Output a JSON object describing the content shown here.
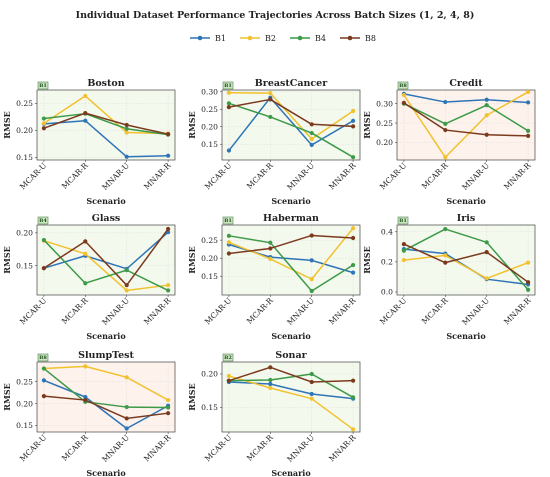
{
  "title": "Individual Dataset Performance Trajectories Across Batch Sizes (1, 2, 4, 8)",
  "legend": [
    {
      "name": "B1",
      "color": "#2e75b6"
    },
    {
      "name": "B2",
      "color": "#f2c12e"
    },
    {
      "name": "B4",
      "color": "#3c9a48"
    },
    {
      "name": "B8",
      "color": "#7b3a1e"
    }
  ],
  "chart_data": [
    {
      "type": "line",
      "title": "Boston",
      "best": "B1",
      "categories": [
        "MCAR-U",
        "MCAR-R",
        "MNAR-U",
        "MNAR-R"
      ],
      "xlabel": "Scenario",
      "ylabel": "RMSE",
      "ylim": [
        0.145,
        0.275
      ],
      "yticks": [
        0.15,
        0.2,
        0.25
      ],
      "ytick_labels": [
        "0.15",
        "0.20",
        "0.25"
      ],
      "background": "#f4f9ee",
      "badge_color": "#cfe6c4",
      "series": [
        {
          "name": "B1",
          "values": [
            0.212,
            0.218,
            0.151,
            0.153
          ]
        },
        {
          "name": "B2",
          "values": [
            0.213,
            0.264,
            0.196,
            0.194
          ]
        },
        {
          "name": "B4",
          "values": [
            0.222,
            0.231,
            0.203,
            0.192
          ]
        },
        {
          "name": "B8",
          "values": [
            0.204,
            0.232,
            0.21,
            0.193
          ]
        }
      ]
    },
    {
      "type": "line",
      "title": "BreastCancer",
      "best": "B1",
      "categories": [
        "MCAR-U",
        "MCAR-R",
        "MNAR-U",
        "MNAR-R"
      ],
      "xlabel": "Scenario",
      "ylabel": "RMSE",
      "ylim": [
        0.105,
        0.305
      ],
      "yticks": [
        0.15,
        0.2,
        0.25,
        0.3
      ],
      "ytick_labels": [
        "0.15",
        "0.20",
        "0.25",
        "0.30"
      ],
      "background": "#f4f9ee",
      "badge_color": "#cfe6c4",
      "series": [
        {
          "name": "B1",
          "values": [
            0.132,
            0.283,
            0.148,
            0.217
          ]
        },
        {
          "name": "B2",
          "values": [
            0.297,
            0.296,
            0.165,
            0.245
          ]
        },
        {
          "name": "B4",
          "values": [
            0.267,
            0.228,
            0.182,
            0.113
          ]
        },
        {
          "name": "B8",
          "values": [
            0.256,
            0.278,
            0.207,
            0.201
          ]
        }
      ]
    },
    {
      "type": "line",
      "title": "Credit",
      "best": "B8",
      "categories": [
        "MCAR-U",
        "MCAR-R",
        "MNAR-U",
        "MNAR-R"
      ],
      "xlabel": "Scenario",
      "ylabel": "RMSE",
      "ylim": [
        0.155,
        0.335
      ],
      "yticks": [
        0.2,
        0.25,
        0.3
      ],
      "ytick_labels": [
        "0.20",
        "0.25",
        "0.30"
      ],
      "background": "#fdf2ec",
      "badge_color": "#cfe6c4",
      "series": [
        {
          "name": "B1",
          "values": [
            0.325,
            0.304,
            0.31,
            0.303
          ]
        },
        {
          "name": "B2",
          "values": [
            0.322,
            0.162,
            0.27,
            0.33
          ]
        },
        {
          "name": "B4",
          "values": [
            0.3,
            0.248,
            0.296,
            0.23
          ]
        },
        {
          "name": "B8",
          "values": [
            0.302,
            0.232,
            0.22,
            0.217
          ]
        }
      ]
    },
    {
      "type": "line",
      "title": "Glass",
      "best": "B4",
      "categories": [
        "MCAR-U",
        "MCAR-R",
        "MNAR-U",
        "MNAR-R"
      ],
      "xlabel": "Scenario",
      "ylabel": "RMSE",
      "ylim": [
        0.105,
        0.212
      ],
      "yticks": [
        0.15,
        0.2
      ],
      "ytick_labels": [
        "0.15",
        "0.20"
      ],
      "background": "#f4f9ee",
      "badge_color": "#cfe6c4",
      "series": [
        {
          "name": "B1",
          "values": [
            0.146,
            0.165,
            0.145,
            0.201
          ]
        },
        {
          "name": "B2",
          "values": [
            0.188,
            0.168,
            0.112,
            0.12
          ]
        },
        {
          "name": "B4",
          "values": [
            0.189,
            0.123,
            0.143,
            0.112
          ]
        },
        {
          "name": "B8",
          "values": [
            0.146,
            0.187,
            0.12,
            0.206
          ]
        }
      ]
    },
    {
      "type": "line",
      "title": "Haberman",
      "best": "B1",
      "categories": [
        "MCAR-U",
        "MCAR-R",
        "MNAR-U",
        "MNAR-R"
      ],
      "xlabel": "Scenario",
      "ylabel": "RMSE",
      "ylim": [
        0.098,
        0.292
      ],
      "yticks": [
        0.15,
        0.2,
        0.25
      ],
      "ytick_labels": [
        "0.15",
        "0.20",
        "0.25"
      ],
      "background": "#f4f9ee",
      "badge_color": "#cfe6c4",
      "series": [
        {
          "name": "B1",
          "values": [
            0.238,
            0.203,
            0.194,
            0.16
          ]
        },
        {
          "name": "B2",
          "values": [
            0.244,
            0.198,
            0.142,
            0.283
          ]
        },
        {
          "name": "B4",
          "values": [
            0.262,
            0.243,
            0.109,
            0.181
          ]
        },
        {
          "name": "B8",
          "values": [
            0.213,
            0.227,
            0.263,
            0.256
          ]
        }
      ]
    },
    {
      "type": "line",
      "title": "Iris",
      "best": "B1",
      "categories": [
        "MCAR-U",
        "MCAR-R",
        "MNAR-U",
        "MNAR-R"
      ],
      "xlabel": "Scenario",
      "ylabel": "RMSE",
      "ylim": [
        -0.02,
        0.445
      ],
      "yticks": [
        0.0,
        0.2,
        0.4
      ],
      "ytick_labels": [
        "0.0",
        "0.2",
        "0.4"
      ],
      "background": "#f4f9ee",
      "badge_color": "#cfe6c4",
      "series": [
        {
          "name": "B1",
          "values": [
            0.285,
            0.255,
            0.085,
            0.05
          ]
        },
        {
          "name": "B2",
          "values": [
            0.212,
            0.243,
            0.09,
            0.195
          ]
        },
        {
          "name": "B4",
          "values": [
            0.275,
            0.418,
            0.33,
            0.015
          ]
        },
        {
          "name": "B8",
          "values": [
            0.318,
            0.195,
            0.265,
            0.065
          ]
        }
      ]
    },
    {
      "type": "line",
      "title": "SlumpTest",
      "best": "B8",
      "categories": [
        "MCAR-U",
        "MCAR-R",
        "MNAR-U",
        "MNAR-R"
      ],
      "xlabel": "Scenario",
      "ylabel": "RMSE",
      "ylim": [
        0.135,
        0.295
      ],
      "yticks": [
        0.15,
        0.2,
        0.25
      ],
      "ytick_labels": [
        "0.15",
        "0.20",
        "0.25"
      ],
      "background": "#fdf2ec",
      "badge_color": "#cfe6c4",
      "series": [
        {
          "name": "B1",
          "values": [
            0.253,
            0.215,
            0.143,
            0.195
          ]
        },
        {
          "name": "B2",
          "values": [
            0.28,
            0.285,
            0.26,
            0.208
          ]
        },
        {
          "name": "B4",
          "values": [
            0.28,
            0.204,
            0.192,
            0.191
          ]
        },
        {
          "name": "B8",
          "values": [
            0.217,
            0.208,
            0.166,
            0.178
          ]
        }
      ]
    },
    {
      "type": "line",
      "title": "Sonar",
      "best": "B2",
      "categories": [
        "MCAR-U",
        "MCAR-R",
        "MNAR-U",
        "MNAR-R"
      ],
      "xlabel": "Scenario",
      "ylabel": "RMSE",
      "ylim": [
        0.113,
        0.218
      ],
      "yticks": [
        0.15,
        0.2
      ],
      "ytick_labels": [
        "0.15",
        "0.20"
      ],
      "background": "#f4f9ee",
      "badge_color": "#cfe6c4",
      "series": [
        {
          "name": "B1",
          "values": [
            0.188,
            0.185,
            0.17,
            0.163
          ]
        },
        {
          "name": "B2",
          "values": [
            0.197,
            0.179,
            0.163,
            0.117
          ]
        },
        {
          "name": "B4",
          "values": [
            0.19,
            0.191,
            0.2,
            0.165
          ]
        },
        {
          "name": "B8",
          "values": [
            0.19,
            0.21,
            0.188,
            0.19
          ]
        }
      ]
    }
  ]
}
